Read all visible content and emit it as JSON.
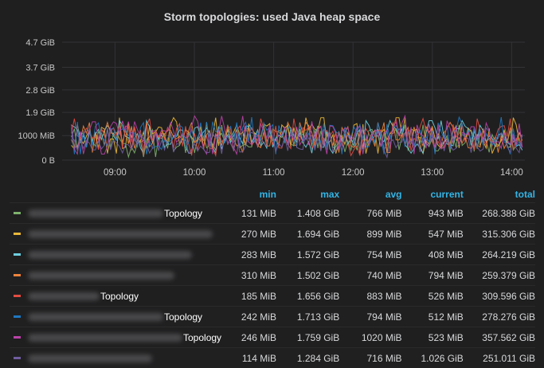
{
  "panel": {
    "title": "Storm topologies: used Java heap space"
  },
  "chart_data": {
    "type": "line",
    "title": "Storm topologies: used Java heap space",
    "y_ticks": [
      "0 B",
      "1000 MiB",
      "1.9 GiB",
      "2.8 GiB",
      "3.7 GiB",
      "4.7 GiB"
    ],
    "y_tick_values_gib": [
      0,
      0.977,
      1.9,
      2.8,
      3.7,
      4.7
    ],
    "ylim_gib": [
      0,
      4.7
    ],
    "x_ticks": [
      "09:00",
      "10:00",
      "11:00",
      "12:00",
      "13:00",
      "14:00"
    ],
    "xlim": [
      "08:20",
      "14:10"
    ],
    "grid": true,
    "legend_placement": "bottom",
    "series_count": 8,
    "series": [
      {
        "min_gib": 0.128,
        "max_gib": 1.408,
        "avg_gib": 0.748,
        "current_gib": 0.921
      },
      {
        "min_gib": 0.264,
        "max_gib": 1.694,
        "avg_gib": 0.878,
        "current_gib": 0.534
      },
      {
        "min_gib": 0.276,
        "max_gib": 1.572,
        "avg_gib": 0.736,
        "current_gib": 0.398
      },
      {
        "min_gib": 0.303,
        "max_gib": 1.502,
        "avg_gib": 0.723,
        "current_gib": 0.775
      },
      {
        "min_gib": 0.181,
        "max_gib": 1.656,
        "avg_gib": 0.862,
        "current_gib": 0.514
      },
      {
        "min_gib": 0.236,
        "max_gib": 1.713,
        "avg_gib": 0.775,
        "current_gib": 0.5
      },
      {
        "min_gib": 0.24,
        "max_gib": 1.759,
        "avg_gib": 0.996,
        "current_gib": 0.511
      },
      {
        "min_gib": 0.111,
        "max_gib": 1.284,
        "avg_gib": 0.699,
        "current_gib": 1.026
      }
    ]
  },
  "legend": {
    "headers": {
      "min": "min",
      "max": "max",
      "avg": "avg",
      "current": "current",
      "total": "total"
    },
    "rows": [
      {
        "color": "#7eb26d",
        "suffix": "Topology",
        "min": "131 MiB",
        "max": "1.408 GiB",
        "avg": "766 MiB",
        "current": "943 MiB",
        "total": "268.388 GiB"
      },
      {
        "color": "#eab839",
        "suffix": "",
        "min": "270 MiB",
        "max": "1.694 GiB",
        "avg": "899 MiB",
        "current": "547 MiB",
        "total": "315.306 GiB"
      },
      {
        "color": "#6ed0e0",
        "suffix": "",
        "min": "283 MiB",
        "max": "1.572 GiB",
        "avg": "754 MiB",
        "current": "408 MiB",
        "total": "264.219 GiB"
      },
      {
        "color": "#ef843c",
        "suffix": "",
        "min": "310 MiB",
        "max": "1.502 GiB",
        "avg": "740 MiB",
        "current": "794 MiB",
        "total": "259.379 GiB"
      },
      {
        "color": "#e24d42",
        "suffix": "Topology",
        "min": "185 MiB",
        "max": "1.656 GiB",
        "avg": "883 MiB",
        "current": "526 MiB",
        "total": "309.596 GiB"
      },
      {
        "color": "#1f78c1",
        "suffix": "Topology",
        "min": "242 MiB",
        "max": "1.713 GiB",
        "avg": "794 MiB",
        "current": "512 MiB",
        "total": "278.276 GiB"
      },
      {
        "color": "#ba43a9",
        "suffix": "Topology",
        "min": "246 MiB",
        "max": "1.759 GiB",
        "avg": "1020 MiB",
        "current": "523 MiB",
        "total": "357.562 GiB"
      },
      {
        "color": "#705da0",
        "suffix": "",
        "min": "114 MiB",
        "max": "1.284 GiB",
        "avg": "716 MiB",
        "current": "1.026 GiB",
        "total": "251.011 GiB"
      }
    ]
  }
}
